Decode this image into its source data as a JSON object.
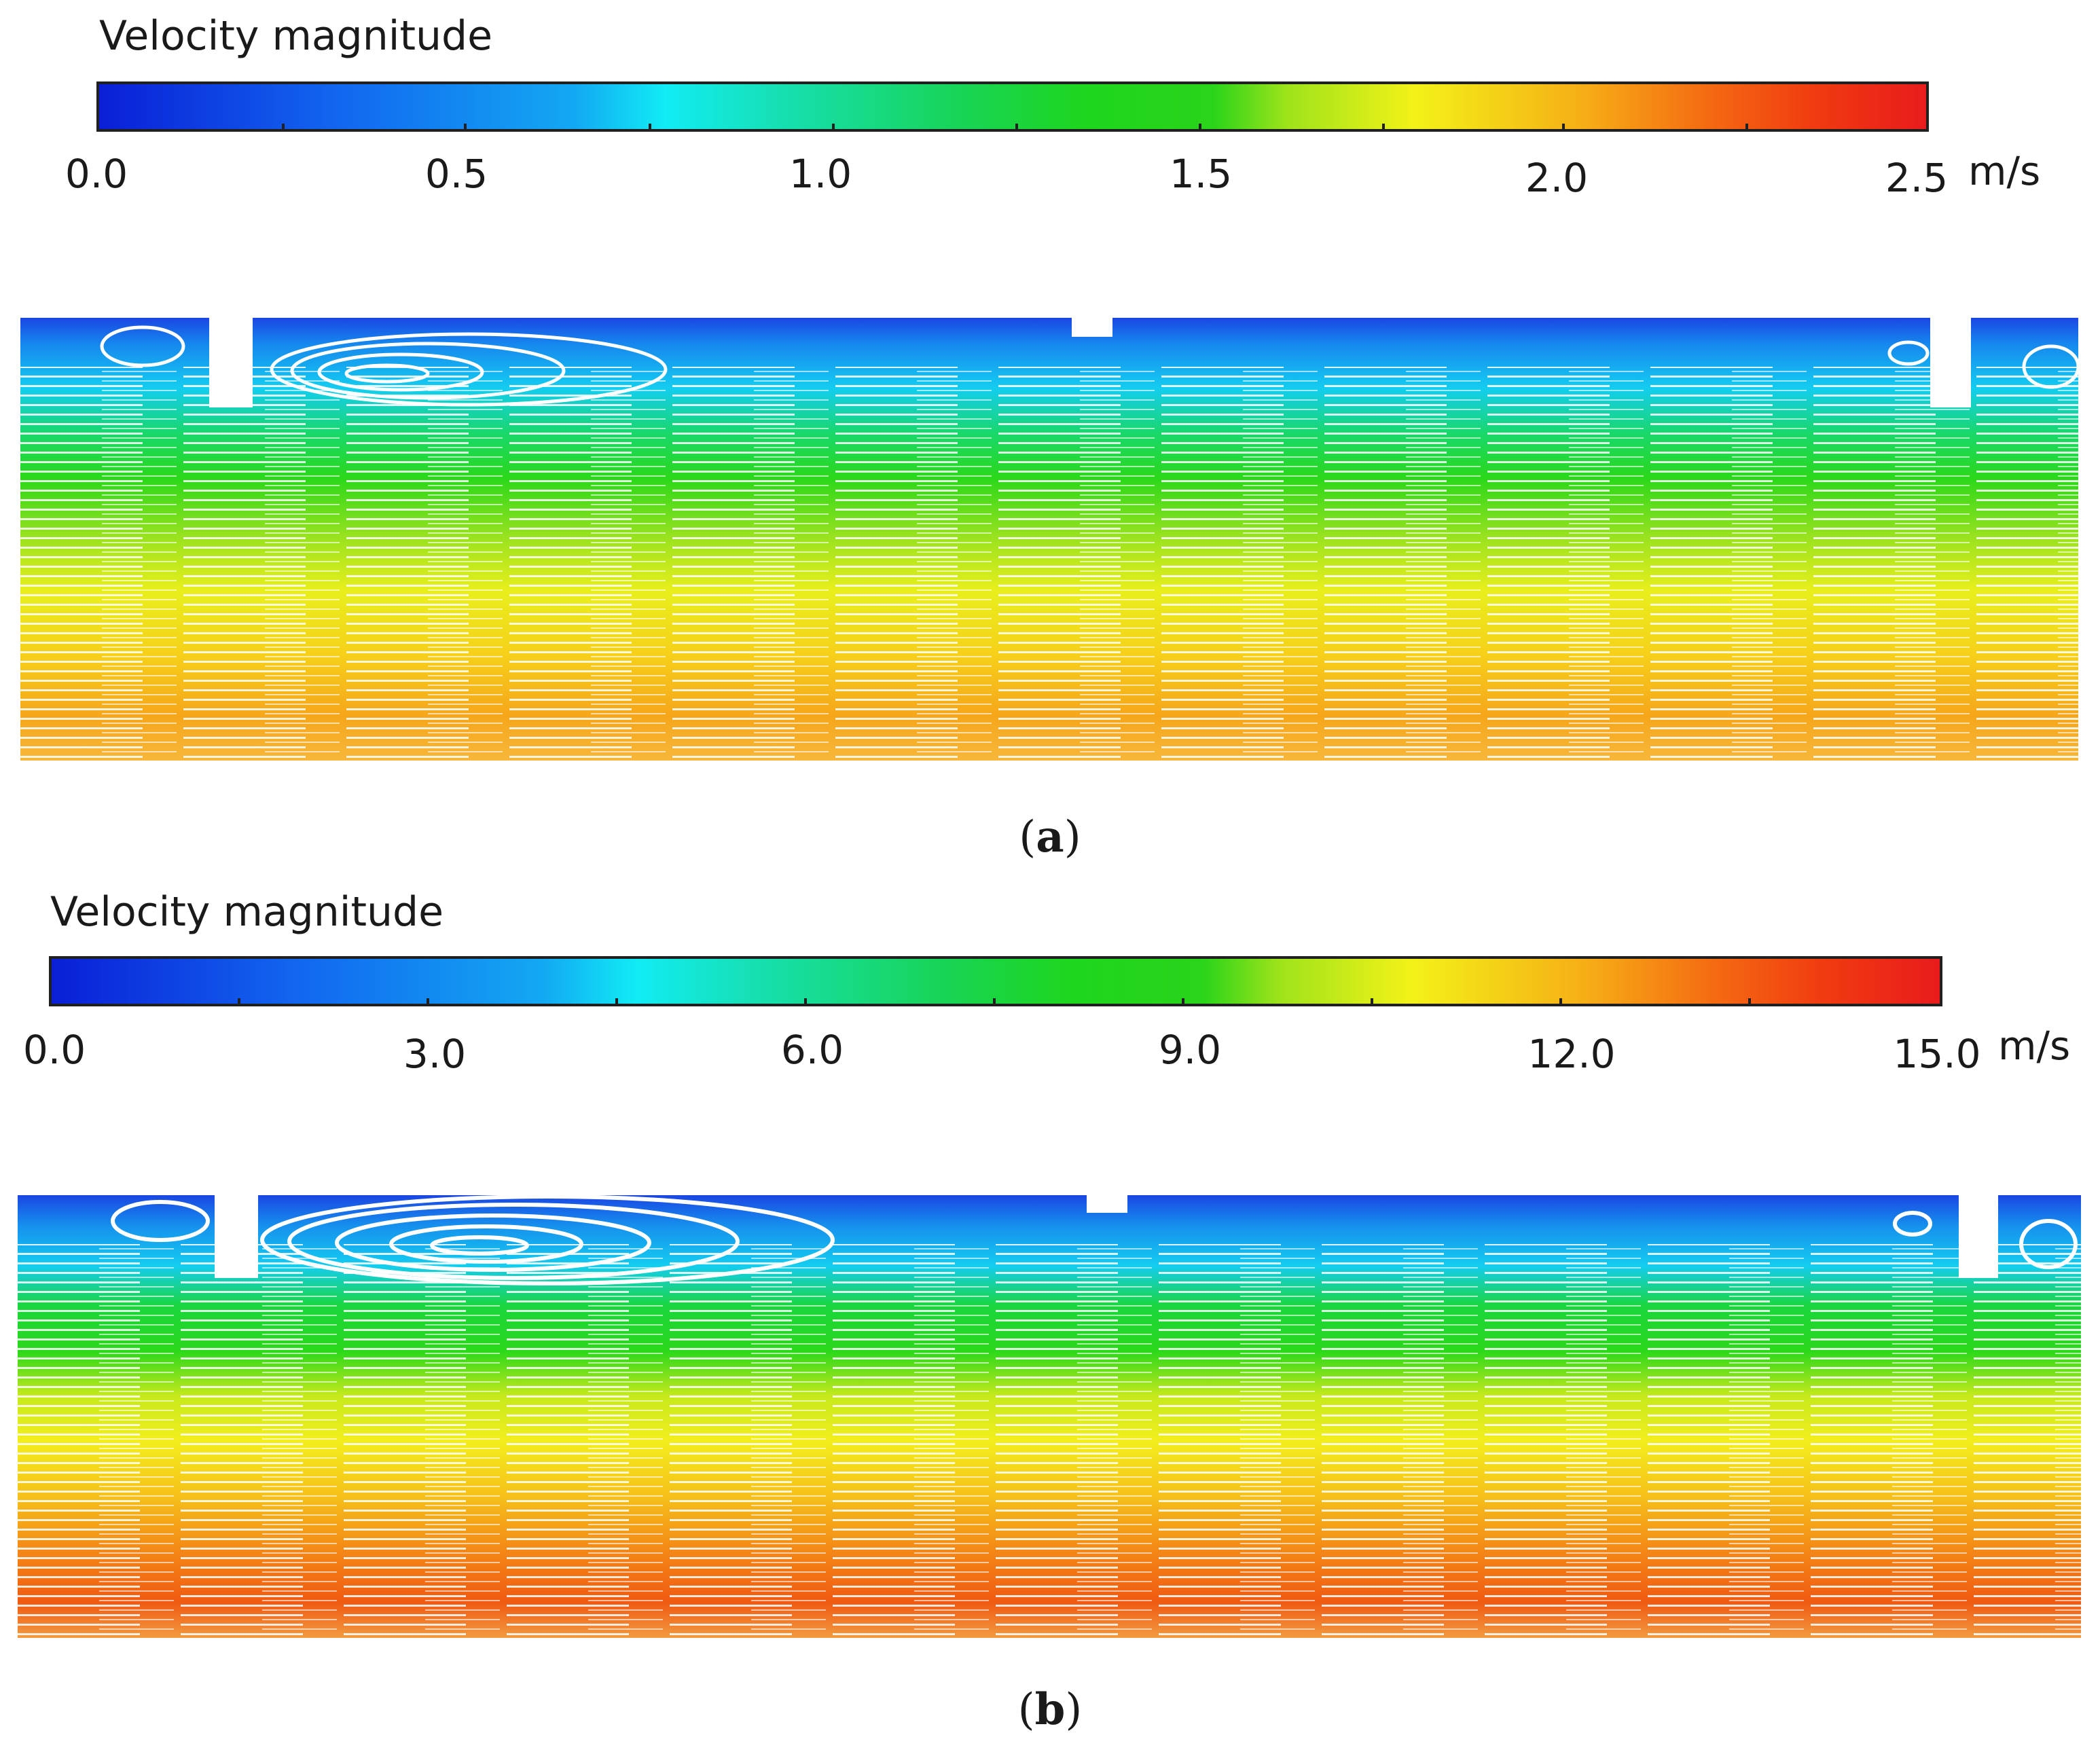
{
  "panels": [
    {
      "label": "a",
      "legend_title": "Velocity magnitude",
      "ticks": [
        "0.0",
        "0.5",
        "1.0",
        "1.5",
        "2.0",
        "2.5"
      ],
      "unit": "m/s",
      "range": [
        0,
        2.5
      ]
    },
    {
      "label": "b",
      "legend_title": "Velocity magnitude",
      "ticks": [
        "0.0",
        "3.0",
        "6.0",
        "9.0",
        "12.0",
        "15.0"
      ],
      "unit": "m/s",
      "range": [
        0,
        15
      ]
    }
  ]
}
